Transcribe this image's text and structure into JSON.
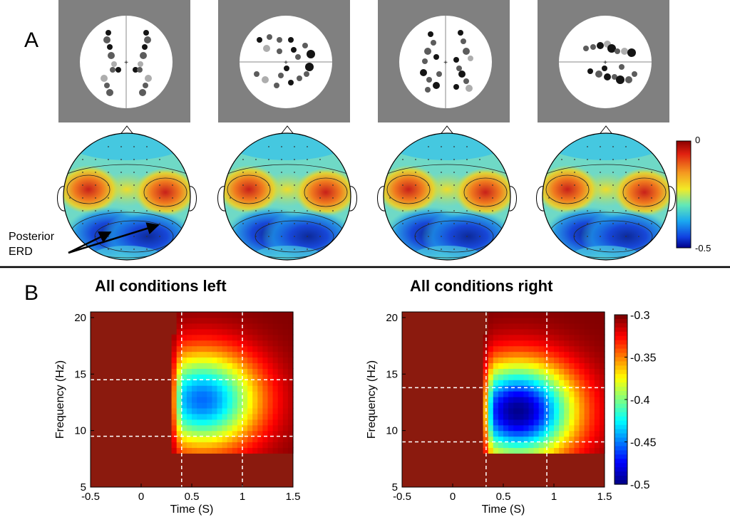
{
  "panel_a": {
    "label": "A",
    "annotation": {
      "line1": "Posterior",
      "line2": "ERD"
    },
    "colorbar": {
      "max_label": "0",
      "min_label": "-0.5"
    },
    "sensor_panels": [
      {
        "name": "sensor-layout-1"
      },
      {
        "name": "sensor-layout-2"
      },
      {
        "name": "sensor-layout-3"
      },
      {
        "name": "sensor-layout-4"
      }
    ]
  },
  "panel_b": {
    "label": "B",
    "colorbar_ticks": [
      "-0.3",
      "-0.35",
      "-0.4",
      "-0.45",
      "-0.5"
    ]
  },
  "colors": {
    "panel_gray": "#808080",
    "sensor_dark": "#141414",
    "sensor_mid": "#5c5c5c",
    "sensor_light": "#adadad",
    "map_red": "#8b1a0e"
  },
  "chart_data": [
    {
      "type": "heatmap",
      "title": "All conditions left",
      "xlabel": "Time (S)",
      "ylabel": "Frequency (Hz)",
      "xlim": [
        -0.5,
        1.5
      ],
      "ylim": [
        5,
        20.5
      ],
      "xticks": [
        "-0.5",
        "0",
        "0.5",
        "1",
        "1.5"
      ],
      "yticks": [
        "5",
        "10",
        "15",
        "20"
      ],
      "vlines": [
        0.4,
        1.0
      ],
      "hlines": [
        9.5,
        14.5
      ],
      "zlim": [
        -0.5,
        -0.3
      ],
      "blob": {
        "t": 0.58,
        "f": 12.5,
        "peak": -0.455
      }
    },
    {
      "type": "heatmap",
      "title": "All conditions right",
      "xlabel": "Time (S)",
      "ylabel": "Frequency (Hz)",
      "xlim": [
        -0.5,
        1.5
      ],
      "ylim": [
        5,
        20.5
      ],
      "xticks": [
        "-0.5",
        "0",
        "0.5",
        "1",
        "1.5"
      ],
      "yticks": [
        "5",
        "10",
        "15",
        "20"
      ],
      "vlines": [
        0.33,
        0.93
      ],
      "hlines": [
        9.0,
        13.8
      ],
      "zlim": [
        -0.5,
        -0.3
      ],
      "blob": {
        "t": 0.62,
        "f": 11.5,
        "peak": -0.5
      }
    }
  ]
}
